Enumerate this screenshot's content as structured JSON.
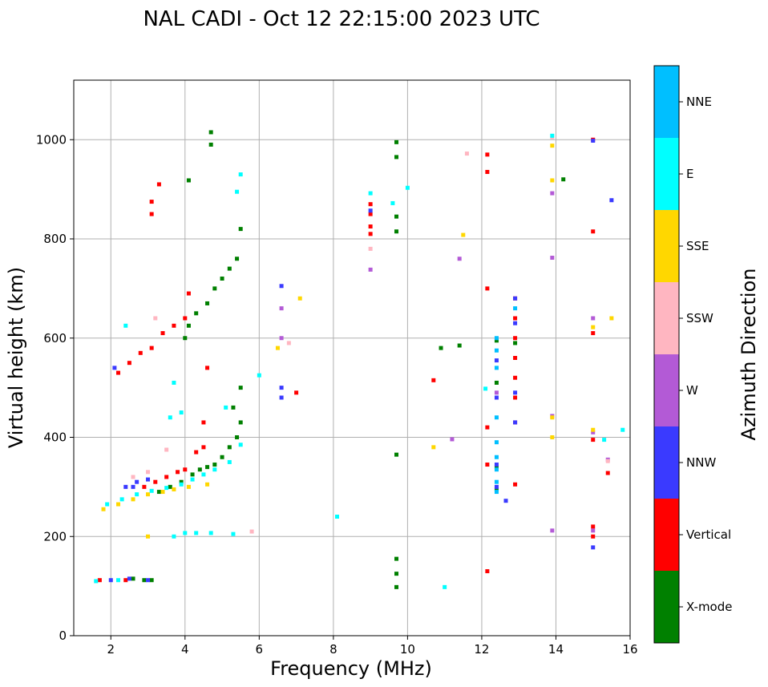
{
  "chart_data": {
    "type": "scatter",
    "title": "NAL CADI - Oct 12 22:15:00 2023 UTC",
    "xlabel": "Frequency (MHz)",
    "ylabel": "Virtual height (km)",
    "xlim": [
      1,
      16
    ],
    "ylim": [
      0,
      1120
    ],
    "xticks": [
      2,
      4,
      6,
      8,
      10,
      12,
      14,
      16
    ],
    "yticks": [
      0,
      200,
      400,
      600,
      800,
      1000
    ],
    "grid": true,
    "colorbar": {
      "label": "Azimuth Direction",
      "categories": [
        {
          "name": "X-mode",
          "color": "#008000"
        },
        {
          "name": "Vertical",
          "color": "#ff0000"
        },
        {
          "name": "NNW",
          "color": "#3a3aff"
        },
        {
          "name": "W",
          "color": "#b35ad6"
        },
        {
          "name": "SSW",
          "color": "#ffb6c1"
        },
        {
          "name": "SSE",
          "color": "#ffd700"
        },
        {
          "name": "E",
          "color": "#00ffff"
        },
        {
          "name": "NNE",
          "color": "#00bfff"
        }
      ]
    },
    "series": [
      {
        "name": "X-mode",
        "color": "#008000",
        "points": [
          [
            3.1,
            112
          ],
          [
            2.9,
            112
          ],
          [
            2.6,
            115
          ],
          [
            3.3,
            290
          ],
          [
            3.6,
            300
          ],
          [
            3.9,
            310
          ],
          [
            4.2,
            325
          ],
          [
            4.4,
            335
          ],
          [
            4.6,
            340
          ],
          [
            4.8,
            345
          ],
          [
            5.0,
            360
          ],
          [
            5.2,
            380
          ],
          [
            5.4,
            400
          ],
          [
            5.5,
            430
          ],
          [
            5.3,
            460
          ],
          [
            5.5,
            500
          ],
          [
            4.0,
            600
          ],
          [
            4.1,
            625
          ],
          [
            4.3,
            650
          ],
          [
            4.6,
            670
          ],
          [
            4.8,
            700
          ],
          [
            5.0,
            720
          ],
          [
            5.2,
            740
          ],
          [
            5.4,
            760
          ],
          [
            4.7,
            990
          ],
          [
            4.1,
            918
          ],
          [
            4.7,
            1015
          ],
          [
            5.5,
            820
          ],
          [
            9.7,
            98
          ],
          [
            9.7,
            125
          ],
          [
            9.7,
            155
          ],
          [
            9.7,
            365
          ],
          [
            9.7,
            815
          ],
          [
            9.7,
            845
          ],
          [
            9.7,
            965
          ],
          [
            9.7,
            995
          ],
          [
            10.9,
            580
          ],
          [
            11.4,
            585
          ],
          [
            12.4,
            295
          ],
          [
            12.4,
            340
          ],
          [
            12.4,
            510
          ],
          [
            12.4,
            595
          ],
          [
            12.9,
            590
          ],
          [
            14.2,
            920
          ]
        ]
      },
      {
        "name": "Vertical",
        "color": "#ff0000",
        "points": [
          [
            1.7,
            112
          ],
          [
            2.4,
            112
          ],
          [
            2.9,
            300
          ],
          [
            3.2,
            310
          ],
          [
            3.5,
            320
          ],
          [
            3.8,
            330
          ],
          [
            4.0,
            335
          ],
          [
            4.3,
            370
          ],
          [
            4.5,
            380
          ],
          [
            2.2,
            530
          ],
          [
            2.5,
            550
          ],
          [
            2.8,
            570
          ],
          [
            3.1,
            580
          ],
          [
            3.4,
            610
          ],
          [
            3.7,
            625
          ],
          [
            4.0,
            640
          ],
          [
            4.1,
            690
          ],
          [
            9.0,
            810
          ],
          [
            9.0,
            825
          ],
          [
            9.0,
            850
          ],
          [
            9.0,
            870
          ],
          [
            3.1,
            850
          ],
          [
            3.1,
            875
          ],
          [
            3.3,
            910
          ],
          [
            10.7,
            515
          ],
          [
            12.15,
            130
          ],
          [
            12.15,
            345
          ],
          [
            12.15,
            420
          ],
          [
            12.15,
            700
          ],
          [
            12.15,
            970
          ],
          [
            12.15,
            935
          ],
          [
            12.9,
            305
          ],
          [
            12.9,
            430
          ],
          [
            12.9,
            480
          ],
          [
            12.9,
            520
          ],
          [
            12.9,
            560
          ],
          [
            12.9,
            600
          ],
          [
            12.9,
            640
          ],
          [
            12.9,
            680
          ],
          [
            15.0,
            200
          ],
          [
            15.0,
            220
          ],
          [
            15.0,
            395
          ],
          [
            15.0,
            610
          ],
          [
            15.0,
            815
          ],
          [
            15.0,
            1000
          ],
          [
            15.4,
            328
          ],
          [
            7.0,
            490
          ],
          [
            4.5,
            430
          ],
          [
            4.6,
            540
          ]
        ]
      },
      {
        "name": "NNW",
        "color": "#3a3aff",
        "points": [
          [
            2.0,
            112
          ],
          [
            2.5,
            115
          ],
          [
            3.0,
            112
          ],
          [
            2.4,
            300
          ],
          [
            2.7,
            310
          ],
          [
            3.0,
            315
          ],
          [
            2.1,
            540
          ],
          [
            6.6,
            480
          ],
          [
            6.6,
            500
          ],
          [
            6.6,
            705
          ],
          [
            9.0,
            857
          ],
          [
            12.4,
            300
          ],
          [
            12.4,
            345
          ],
          [
            12.4,
            480
          ],
          [
            12.4,
            555
          ],
          [
            12.65,
            272
          ],
          [
            12.9,
            430
          ],
          [
            12.9,
            490
          ],
          [
            12.9,
            630
          ],
          [
            12.9,
            680
          ],
          [
            15.0,
            178
          ],
          [
            15.0,
            998
          ],
          [
            15.5,
            878
          ],
          [
            2.6,
            300
          ]
        ]
      },
      {
        "name": "W",
        "color": "#b35ad6",
        "points": [
          [
            9.0,
            738
          ],
          [
            11.2,
            396
          ],
          [
            11.4,
            760
          ],
          [
            12.4,
            490
          ],
          [
            13.9,
            212
          ],
          [
            13.9,
            443
          ],
          [
            13.9,
            762
          ],
          [
            13.9,
            892
          ],
          [
            15.0,
            212
          ],
          [
            15.0,
            410
          ],
          [
            15.0,
            640
          ],
          [
            15.4,
            355
          ],
          [
            6.6,
            600
          ],
          [
            6.6,
            660
          ]
        ]
      },
      {
        "name": "SSW",
        "color": "#ffb6c1",
        "points": [
          [
            2.6,
            320
          ],
          [
            3.0,
            330
          ],
          [
            3.5,
            375
          ],
          [
            3.2,
            640
          ],
          [
            9.0,
            780
          ],
          [
            11.6,
            972
          ],
          [
            13.9,
            1005
          ],
          [
            15.4,
            352
          ],
          [
            5.8,
            210
          ],
          [
            6.8,
            590
          ]
        ]
      },
      {
        "name": "SSE",
        "color": "#ffd700",
        "points": [
          [
            1.8,
            255
          ],
          [
            2.2,
            265
          ],
          [
            2.6,
            275
          ],
          [
            3.0,
            285
          ],
          [
            3.4,
            290
          ],
          [
            3.7,
            295
          ],
          [
            4.1,
            300
          ],
          [
            4.6,
            305
          ],
          [
            3.0,
            200
          ],
          [
            10.7,
            380
          ],
          [
            11.5,
            808
          ],
          [
            13.9,
            400
          ],
          [
            13.9,
            440
          ],
          [
            13.9,
            918
          ],
          [
            13.9,
            988
          ],
          [
            15.0,
            415
          ],
          [
            15.0,
            622
          ],
          [
            15.5,
            640
          ],
          [
            6.5,
            580
          ],
          [
            7.1,
            680
          ]
        ]
      },
      {
        "name": "E",
        "color": "#00ffff",
        "points": [
          [
            1.6,
            110
          ],
          [
            2.2,
            112
          ],
          [
            1.9,
            265
          ],
          [
            2.3,
            275
          ],
          [
            2.7,
            285
          ],
          [
            3.1,
            292
          ],
          [
            3.5,
            298
          ],
          [
            3.9,
            305
          ],
          [
            4.2,
            315
          ],
          [
            4.5,
            325
          ],
          [
            4.8,
            335
          ],
          [
            5.2,
            350
          ],
          [
            5.5,
            385
          ],
          [
            3.6,
            440
          ],
          [
            3.9,
            450
          ],
          [
            3.7,
            200
          ],
          [
            4.0,
            207
          ],
          [
            4.3,
            207
          ],
          [
            4.7,
            207
          ],
          [
            5.3,
            205
          ],
          [
            8.1,
            240
          ],
          [
            9.0,
            892
          ],
          [
            9.6,
            872
          ],
          [
            10.0,
            903
          ],
          [
            11.0,
            98
          ],
          [
            12.1,
            498
          ],
          [
            13.9,
            1008
          ],
          [
            15.3,
            395
          ],
          [
            15.8,
            415
          ],
          [
            5.5,
            930
          ],
          [
            5.4,
            895
          ],
          [
            2.4,
            625
          ],
          [
            3.7,
            510
          ],
          [
            6.0,
            525
          ],
          [
            5.1,
            460
          ]
        ]
      },
      {
        "name": "NNE",
        "color": "#00bfff",
        "points": [
          [
            12.4,
            290
          ],
          [
            12.4,
            310
          ],
          [
            12.4,
            335
          ],
          [
            12.4,
            360
          ],
          [
            12.4,
            390
          ],
          [
            12.4,
            440
          ],
          [
            12.4,
            540
          ],
          [
            12.4,
            575
          ],
          [
            12.4,
            600
          ],
          [
            12.9,
            660
          ]
        ]
      }
    ]
  }
}
